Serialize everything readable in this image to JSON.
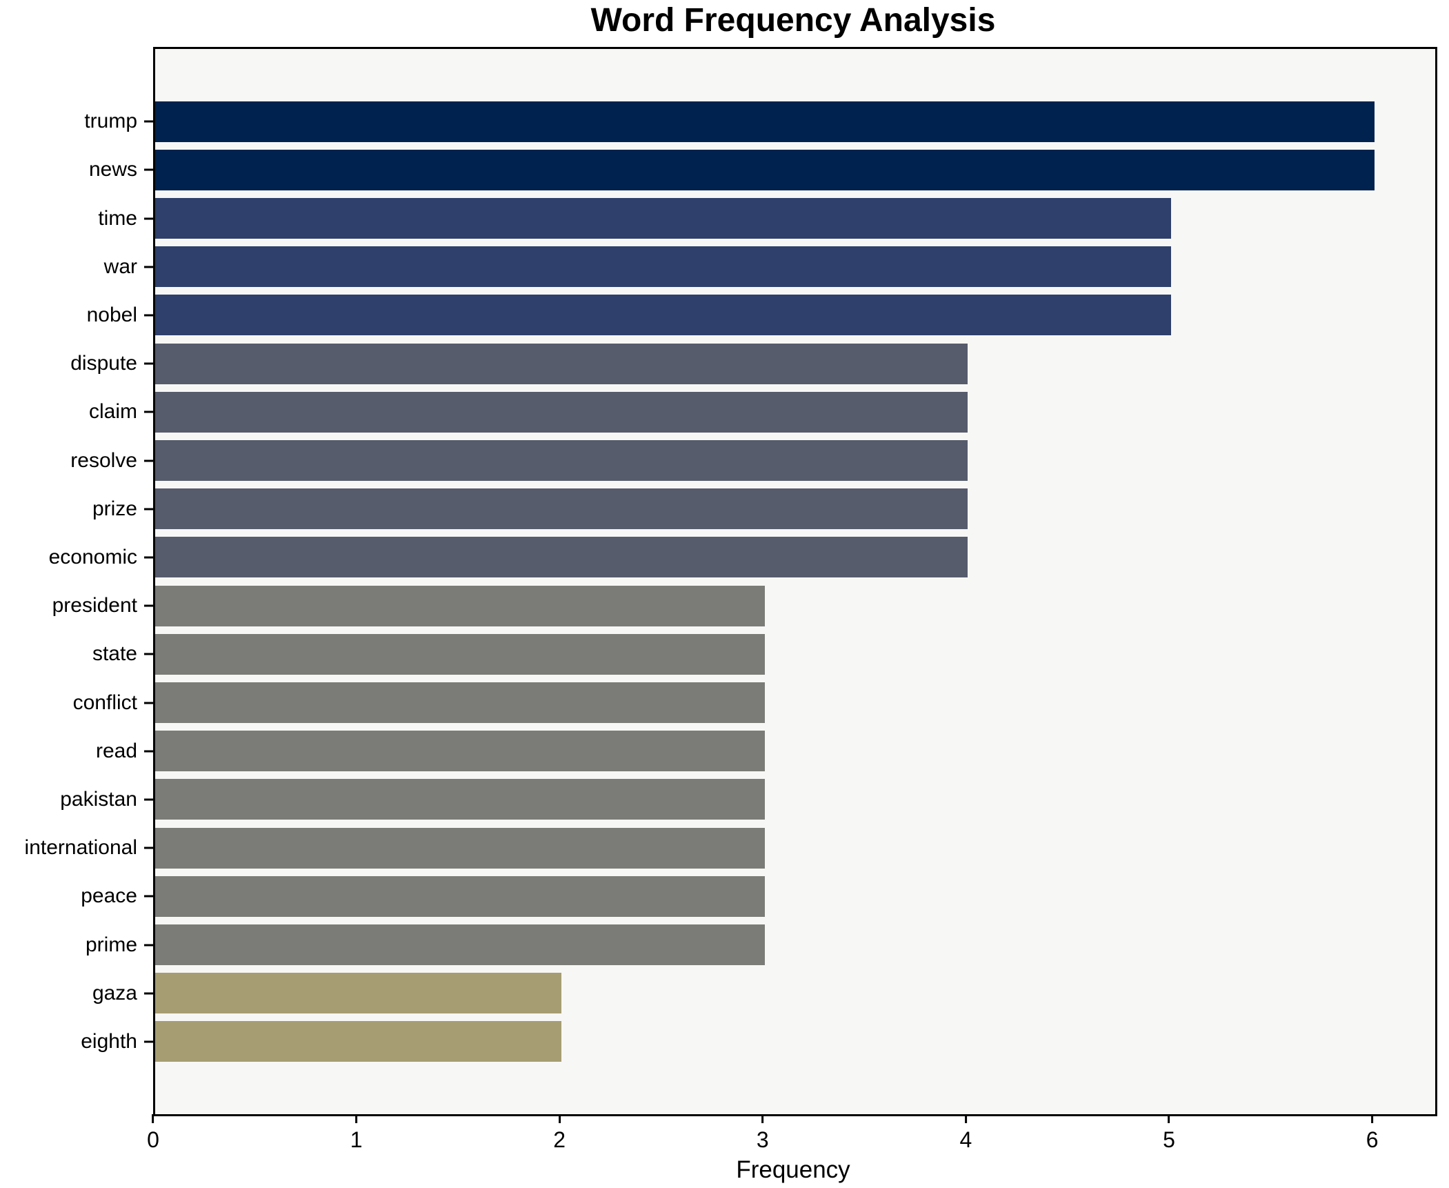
{
  "chart_data": {
    "type": "bar",
    "orientation": "horizontal",
    "title": "Word Frequency Analysis",
    "xlabel": "Frequency",
    "ylabel": "",
    "grid": false,
    "legend": false,
    "xlim": [
      0,
      6.3
    ],
    "xticks": [
      0,
      1,
      2,
      3,
      4,
      5,
      6
    ],
    "categories": [
      "trump",
      "news",
      "time",
      "war",
      "nobel",
      "dispute",
      "claim",
      "resolve",
      "prize",
      "economic",
      "president",
      "state",
      "conflict",
      "read",
      "pakistan",
      "international",
      "peace",
      "prime",
      "gaza",
      "eighth"
    ],
    "values": [
      6,
      6,
      5,
      5,
      5,
      4,
      4,
      4,
      4,
      4,
      3,
      3,
      3,
      3,
      3,
      3,
      3,
      3,
      2,
      2
    ],
    "colors": [
      "#00224e",
      "#00224e",
      "#2e406b",
      "#2e406b",
      "#2e406b",
      "#565c6c",
      "#565c6c",
      "#565c6c",
      "#565c6c",
      "#565c6c",
      "#7b7b77",
      "#7b7b77",
      "#7b7b77",
      "#7b7b77",
      "#7b7b77",
      "#7b7b77",
      "#7b7b77",
      "#7b7b77",
      "#a69d72",
      "#a69d72"
    ],
    "plot_background": "#f7f7f5",
    "figure_background": "#ffffff",
    "spine_color": "#000000"
  }
}
